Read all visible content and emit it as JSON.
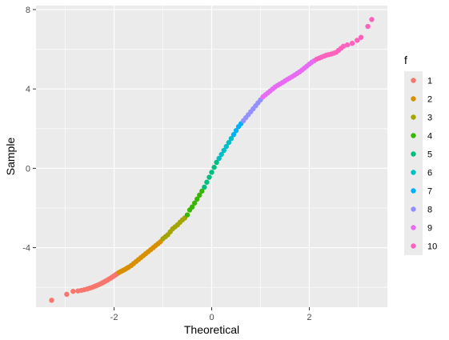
{
  "chart_data": {
    "type": "scatter",
    "xlabel": "Theoretical",
    "ylabel": "Sample",
    "xlim": [
      -3.6,
      3.6
    ],
    "ylim": [
      -7.0,
      8.2
    ],
    "x_ticks": [
      -2,
      0,
      2
    ],
    "y_ticks": [
      -4,
      0,
      4,
      8
    ],
    "x_tick_labels": [
      "-2",
      "0",
      "2"
    ],
    "y_tick_labels": [
      "-4",
      "0",
      "4",
      "8"
    ],
    "grid": true,
    "legend": {
      "title": "f",
      "placement": "right",
      "entries": [
        "1",
        "2",
        "3",
        "4",
        "5",
        "6",
        "7",
        "8",
        "9",
        "10"
      ],
      "colors": [
        "#F8766D",
        "#D89000",
        "#A3A500",
        "#39B600",
        "#00BF7D",
        "#00BFC4",
        "#00B0F6",
        "#9590FF",
        "#E76BF3",
        "#FF62BC"
      ]
    },
    "series": [
      {
        "name": "1",
        "color": "#F8766D",
        "points": [
          [
            -3.28,
            -6.65
          ],
          [
            -2.97,
            -6.35
          ],
          [
            -2.84,
            -6.2
          ],
          [
            -2.74,
            -6.18
          ],
          [
            -2.67,
            -6.15
          ],
          [
            -2.61,
            -6.12
          ],
          [
            -2.55,
            -6.08
          ],
          [
            -2.5,
            -6.04
          ],
          [
            -2.45,
            -6.0
          ],
          [
            -2.41,
            -5.96
          ],
          [
            -2.37,
            -5.92
          ],
          [
            -2.33,
            -5.88
          ],
          [
            -2.29,
            -5.84
          ],
          [
            -2.26,
            -5.8
          ],
          [
            -2.23,
            -5.76
          ],
          [
            -2.2,
            -5.72
          ],
          [
            -2.17,
            -5.68
          ],
          [
            -2.14,
            -5.64
          ],
          [
            -2.11,
            -5.59
          ],
          [
            -2.08,
            -5.55
          ],
          [
            -2.05,
            -5.5
          ],
          [
            -2.02,
            -5.45
          ],
          [
            -1.99,
            -5.4
          ],
          [
            -1.96,
            -5.35
          ],
          [
            -1.93,
            -5.3
          ]
        ]
      },
      {
        "name": "2",
        "color": "#D89000",
        "points": [
          [
            -1.9,
            -5.25
          ],
          [
            -1.86,
            -5.2
          ],
          [
            -1.82,
            -5.15
          ],
          [
            -1.78,
            -5.1
          ],
          [
            -1.74,
            -5.04
          ],
          [
            -1.7,
            -4.98
          ],
          [
            -1.65,
            -4.9
          ],
          [
            -1.6,
            -4.8
          ],
          [
            -1.55,
            -4.7
          ],
          [
            -1.5,
            -4.6
          ],
          [
            -1.45,
            -4.5
          ],
          [
            -1.4,
            -4.4
          ],
          [
            -1.35,
            -4.3
          ],
          [
            -1.3,
            -4.2
          ],
          [
            -1.25,
            -4.1
          ],
          [
            -1.2,
            -4.0
          ],
          [
            -1.15,
            -3.9
          ],
          [
            -1.1,
            -3.8
          ],
          [
            -1.05,
            -3.7
          ]
        ]
      },
      {
        "name": "3",
        "color": "#A3A500",
        "points": [
          [
            -1.0,
            -3.55
          ],
          [
            -0.95,
            -3.45
          ],
          [
            -0.9,
            -3.35
          ],
          [
            -0.85,
            -3.2
          ],
          [
            -0.8,
            -3.05
          ],
          [
            -0.75,
            -2.95
          ],
          [
            -0.7,
            -2.85
          ],
          [
            -0.65,
            -2.72
          ],
          [
            -0.6,
            -2.6
          ],
          [
            -0.55,
            -2.5
          ]
        ]
      },
      {
        "name": "4",
        "color": "#39B600",
        "points": [
          [
            -0.5,
            -2.35
          ],
          [
            -0.45,
            -2.1
          ],
          [
            -0.4,
            -1.95
          ],
          [
            -0.35,
            -1.75
          ],
          [
            -0.3,
            -1.55
          ],
          [
            -0.25,
            -1.35
          ],
          [
            -0.2,
            -1.15
          ]
        ]
      },
      {
        "name": "5",
        "color": "#00BF7D",
        "points": [
          [
            -0.15,
            -0.95
          ],
          [
            -0.1,
            -0.7
          ],
          [
            -0.05,
            -0.45
          ],
          [
            0.0,
            -0.2
          ],
          [
            0.05,
            0.05
          ],
          [
            0.1,
            0.3
          ]
        ]
      },
      {
        "name": "6",
        "color": "#00BFC4",
        "points": [
          [
            0.15,
            0.5
          ],
          [
            0.2,
            0.7
          ],
          [
            0.25,
            0.9
          ],
          [
            0.3,
            1.1
          ],
          [
            0.35,
            1.3
          ],
          [
            0.4,
            1.5
          ]
        ]
      },
      {
        "name": "7",
        "color": "#00B0F6",
        "points": [
          [
            0.45,
            1.7
          ],
          [
            0.5,
            1.9
          ],
          [
            0.55,
            2.1
          ],
          [
            0.6,
            2.25
          ]
        ]
      },
      {
        "name": "8",
        "color": "#9590FF",
        "points": [
          [
            0.65,
            2.4
          ],
          [
            0.7,
            2.55
          ],
          [
            0.75,
            2.7
          ],
          [
            0.8,
            2.85
          ],
          [
            0.85,
            3.0
          ],
          [
            0.9,
            3.15
          ],
          [
            0.95,
            3.3
          ],
          [
            1.0,
            3.45
          ]
        ]
      },
      {
        "name": "9",
        "color": "#E76BF3",
        "points": [
          [
            1.05,
            3.6
          ],
          [
            1.1,
            3.7
          ],
          [
            1.15,
            3.8
          ],
          [
            1.2,
            3.9
          ],
          [
            1.25,
            4.0
          ],
          [
            1.3,
            4.1
          ],
          [
            1.35,
            4.18
          ],
          [
            1.4,
            4.25
          ],
          [
            1.45,
            4.32
          ],
          [
            1.5,
            4.4
          ],
          [
            1.55,
            4.48
          ],
          [
            1.6,
            4.55
          ],
          [
            1.65,
            4.62
          ],
          [
            1.7,
            4.7
          ],
          [
            1.75,
            4.78
          ],
          [
            1.8,
            4.86
          ],
          [
            1.85,
            4.95
          ],
          [
            1.9,
            5.05
          ],
          [
            1.95,
            5.15
          ],
          [
            2.0,
            5.25
          ],
          [
            2.05,
            5.35
          ],
          [
            2.1,
            5.42
          ]
        ]
      },
      {
        "name": "10",
        "color": "#FF62BC",
        "points": [
          [
            2.15,
            5.5
          ],
          [
            2.2,
            5.55
          ],
          [
            2.25,
            5.6
          ],
          [
            2.3,
            5.65
          ],
          [
            2.35,
            5.7
          ],
          [
            2.4,
            5.73
          ],
          [
            2.45,
            5.76
          ],
          [
            2.5,
            5.8
          ],
          [
            2.55,
            5.85
          ],
          [
            2.6,
            5.95
          ],
          [
            2.65,
            6.05
          ],
          [
            2.7,
            6.15
          ],
          [
            2.78,
            6.22
          ],
          [
            2.88,
            6.3
          ],
          [
            2.98,
            6.45
          ],
          [
            3.06,
            6.6
          ],
          [
            3.2,
            7.15
          ],
          [
            3.28,
            7.5
          ]
        ]
      }
    ]
  }
}
